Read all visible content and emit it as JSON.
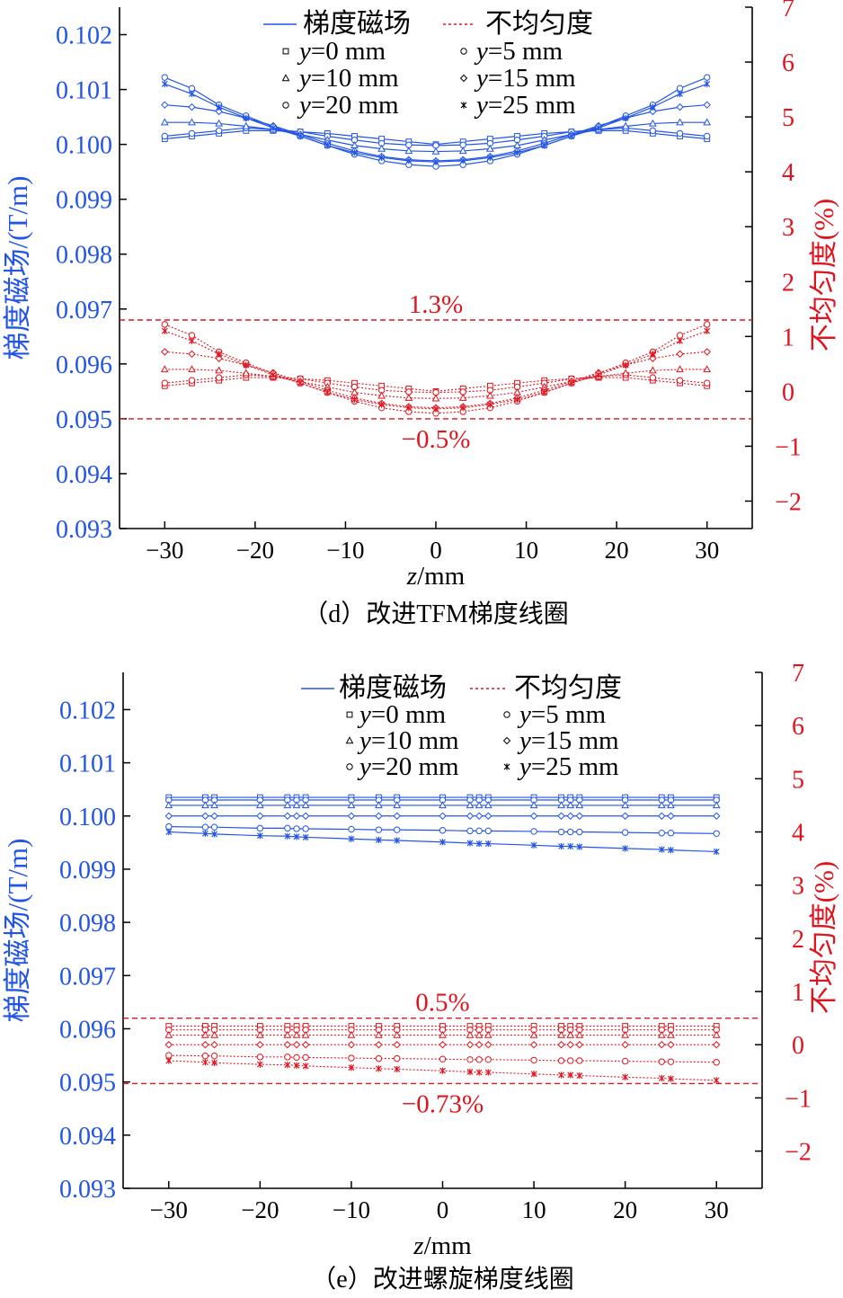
{
  "colors": {
    "blue": "#2255e6",
    "red": "#e0141e",
    "axis": "#000000"
  },
  "chart_data": [
    {
      "type": "line",
      "caption": "（d）改进TFM梯度线圈",
      "xlabel_italic": "z",
      "xlabel_rest": "/mm",
      "ylabel_left": "梯度磁场/(T/m)",
      "ylabel_right": "不均匀度(%)",
      "xlim": [
        -35,
        35
      ],
      "ylim_left": [
        0.093,
        0.1025
      ],
      "ylim_right": [
        -2.5,
        7
      ],
      "xticks": [
        -30,
        -20,
        -10,
        0,
        10,
        20,
        30
      ],
      "xtick_labels": [
        "−30",
        "−20",
        "−10",
        "0",
        "10",
        "20",
        "30"
      ],
      "yticks_left": [
        0.093,
        0.094,
        0.095,
        0.096,
        0.097,
        0.098,
        0.099,
        0.1,
        0.101,
        0.102
      ],
      "ytick_labels_left": [
        "0.093",
        "0.094",
        "0.095",
        "0.096",
        "0.097",
        "0.098",
        "0.099",
        "0.100",
        "0.101",
        "0.102"
      ],
      "yticks_right": [
        -2,
        -1,
        0,
        1,
        2,
        3,
        4,
        5,
        6,
        7
      ],
      "ytick_labels_right": [
        "−2",
        "−1",
        "0",
        "1",
        "2",
        "3",
        "4",
        "5",
        "6",
        "7"
      ],
      "legend": {
        "solid": "梯度磁场",
        "dashed": "不均匀度",
        "y_prefix": "y",
        "placement": "top-center"
      },
      "series_labels": [
        "=0 mm",
        "=5 mm",
        "=10 mm",
        "=15 mm",
        "=20 mm",
        "=25 mm"
      ],
      "x": [
        -30,
        -27,
        -24,
        -21,
        -18,
        -15,
        -12,
        -9,
        -6,
        -3,
        0,
        3,
        6,
        9,
        12,
        15,
        18,
        21,
        24,
        27,
        30
      ],
      "series_field": [
        [
          0.1001,
          0.10015,
          0.1002,
          0.10025,
          0.10025,
          0.10023,
          0.1002,
          0.10015,
          0.1001,
          0.10005,
          0.1,
          0.10005,
          0.1001,
          0.10015,
          0.1002,
          0.10023,
          0.10025,
          0.10025,
          0.1002,
          0.10015,
          0.1001
        ],
        [
          0.10015,
          0.1002,
          0.10025,
          0.1003,
          0.10027,
          0.10023,
          0.10015,
          0.10008,
          0.10002,
          0.09999,
          0.09998,
          0.09999,
          0.10002,
          0.10008,
          0.10015,
          0.10023,
          0.10027,
          0.1003,
          0.10025,
          0.1002,
          0.10015
        ],
        [
          0.1004,
          0.1004,
          0.10038,
          0.10033,
          0.10027,
          0.10018,
          0.10008,
          0.09998,
          0.09992,
          0.09988,
          0.09987,
          0.09988,
          0.09992,
          0.09998,
          0.10008,
          0.10018,
          0.10027,
          0.10033,
          0.10038,
          0.1004,
          0.1004
        ],
        [
          0.10072,
          0.10068,
          0.1006,
          0.10048,
          0.10034,
          0.10018,
          0.10002,
          0.09988,
          0.09978,
          0.09972,
          0.0997,
          0.09972,
          0.09978,
          0.09988,
          0.10002,
          0.10018,
          0.10034,
          0.10048,
          0.1006,
          0.10068,
          0.10072
        ],
        [
          0.10122,
          0.10102,
          0.10072,
          0.10052,
          0.10032,
          0.10015,
          0.09998,
          0.09982,
          0.0997,
          0.09963,
          0.0996,
          0.09963,
          0.0997,
          0.09982,
          0.09998,
          0.10015,
          0.10032,
          0.10052,
          0.10072,
          0.10102,
          0.10122
        ],
        [
          0.1011,
          0.10092,
          0.10068,
          0.10048,
          0.1003,
          0.10015,
          0.09998,
          0.09985,
          0.09976,
          0.0997,
          0.09968,
          0.0997,
          0.09976,
          0.09985,
          0.09998,
          0.10015,
          0.1003,
          0.10048,
          0.10068,
          0.10092,
          0.1011
        ]
      ],
      "series_nonuniformity": [
        [
          0.1,
          0.15,
          0.2,
          0.25,
          0.25,
          0.23,
          0.2,
          0.15,
          0.1,
          0.05,
          0.0,
          0.05,
          0.1,
          0.15,
          0.2,
          0.23,
          0.25,
          0.25,
          0.2,
          0.15,
          0.1
        ],
        [
          0.15,
          0.2,
          0.25,
          0.3,
          0.27,
          0.23,
          0.15,
          0.08,
          0.02,
          -0.01,
          -0.02,
          -0.01,
          0.02,
          0.08,
          0.15,
          0.23,
          0.27,
          0.3,
          0.25,
          0.2,
          0.15
        ],
        [
          0.4,
          0.4,
          0.38,
          0.33,
          0.27,
          0.18,
          0.08,
          -0.02,
          -0.08,
          -0.12,
          -0.13,
          -0.12,
          -0.08,
          -0.02,
          0.08,
          0.18,
          0.27,
          0.33,
          0.38,
          0.4,
          0.4
        ],
        [
          0.72,
          0.68,
          0.6,
          0.48,
          0.34,
          0.18,
          0.02,
          -0.12,
          -0.22,
          -0.28,
          -0.3,
          -0.28,
          -0.22,
          -0.12,
          0.02,
          0.18,
          0.34,
          0.48,
          0.6,
          0.68,
          0.72
        ],
        [
          1.22,
          1.02,
          0.72,
          0.52,
          0.32,
          0.15,
          -0.02,
          -0.18,
          -0.3,
          -0.37,
          -0.4,
          -0.37,
          -0.3,
          -0.18,
          -0.02,
          0.15,
          0.32,
          0.52,
          0.72,
          1.02,
          1.22
        ],
        [
          1.1,
          0.92,
          0.68,
          0.48,
          0.3,
          0.15,
          -0.02,
          -0.15,
          -0.24,
          -0.3,
          -0.32,
          -0.3,
          -0.24,
          -0.15,
          -0.02,
          0.15,
          0.3,
          0.48,
          0.68,
          0.92,
          1.1
        ]
      ],
      "reference_lines": [
        {
          "value": 1.3,
          "label": "1.3%",
          "label_position": "above"
        },
        {
          "value": -0.5,
          "label": "−0.5%",
          "label_position": "below"
        }
      ]
    },
    {
      "type": "line",
      "caption": "（e）改进螺旋梯度线圈",
      "xlabel_italic": "z",
      "xlabel_rest": "/mm",
      "ylabel_left": "梯度磁场/(T/m)",
      "ylabel_right": "不均匀度(%)",
      "xlim": [
        -35,
        35
      ],
      "ylim_left": [
        0.093,
        0.1027
      ],
      "ylim_right": [
        -2.7,
        7
      ],
      "xticks": [
        -30,
        -20,
        -10,
        0,
        10,
        20,
        30
      ],
      "xtick_labels": [
        "−30",
        "−20",
        "−10",
        "0",
        "10",
        "20",
        "30"
      ],
      "yticks_left": [
        0.093,
        0.094,
        0.095,
        0.096,
        0.097,
        0.098,
        0.099,
        0.1,
        0.101,
        0.102
      ],
      "ytick_labels_left": [
        "0.093",
        "0.094",
        "0.095",
        "0.096",
        "0.097",
        "0.098",
        "0.099",
        "0.100",
        "0.101",
        "0.102"
      ],
      "yticks_right": [
        -2,
        -1,
        0,
        1,
        2,
        3,
        4,
        5,
        6,
        7
      ],
      "ytick_labels_right": [
        "−2",
        "−1",
        "0",
        "1",
        "2",
        "3",
        "4",
        "5",
        "6",
        "7"
      ],
      "legend": {
        "solid": "梯度磁场",
        "dashed": "不均匀度",
        "y_prefix": "y",
        "placement": "top-center"
      },
      "series_labels": [
        "=0 mm",
        "=5 mm",
        "=10 mm",
        "=15 mm",
        "=20 mm",
        "=25 mm"
      ],
      "x": [
        -30,
        -26,
        -25,
        -20,
        -17,
        -16,
        -15,
        -10,
        -7,
        -5,
        0,
        3,
        4,
        5,
        10,
        13,
        14,
        15,
        20,
        24,
        25,
        30
      ],
      "series_field": [
        [
          0.10035,
          0.10035,
          0.10035,
          0.10035,
          0.10035,
          0.10035,
          0.10035,
          0.10035,
          0.10035,
          0.10035,
          0.10035,
          0.10035,
          0.10035,
          0.10035,
          0.10035,
          0.10035,
          0.10035,
          0.10035,
          0.10035,
          0.10035,
          0.10035,
          0.10035
        ],
        [
          0.1003,
          0.1003,
          0.1003,
          0.1003,
          0.1003,
          0.1003,
          0.1003,
          0.1003,
          0.1003,
          0.1003,
          0.1003,
          0.1003,
          0.1003,
          0.1003,
          0.1003,
          0.1003,
          0.1003,
          0.1003,
          0.1003,
          0.1003,
          0.1003,
          0.1003
        ],
        [
          0.1002,
          0.1002,
          0.1002,
          0.1002,
          0.1002,
          0.1002,
          0.1002,
          0.1002,
          0.1002,
          0.1002,
          0.1002,
          0.1002,
          0.1002,
          0.1002,
          0.1002,
          0.1002,
          0.1002,
          0.1002,
          0.1002,
          0.1002,
          0.1002,
          0.1002
        ],
        [
          0.1,
          0.1,
          0.1,
          0.1,
          0.1,
          0.1,
          0.1,
          0.1,
          0.1,
          0.1,
          0.1,
          0.1,
          0.1,
          0.1,
          0.1,
          0.1,
          0.1,
          0.1,
          0.1,
          0.1,
          0.1,
          0.1
        ],
        [
          0.0998,
          0.09979,
          0.09979,
          0.09977,
          0.09977,
          0.09976,
          0.09976,
          0.09975,
          0.09974,
          0.09974,
          0.09973,
          0.09972,
          0.09972,
          0.09972,
          0.09971,
          0.0997,
          0.0997,
          0.0997,
          0.09969,
          0.09968,
          0.09968,
          0.09967
        ],
        [
          0.0997,
          0.09967,
          0.09966,
          0.09963,
          0.09962,
          0.09961,
          0.0996,
          0.09957,
          0.09955,
          0.09954,
          0.09951,
          0.09949,
          0.09948,
          0.09948,
          0.09945,
          0.09943,
          0.09943,
          0.09942,
          0.09939,
          0.09937,
          0.09936,
          0.09933
        ]
      ],
      "series_nonuniformity": [
        [
          0.35,
          0.35,
          0.35,
          0.35,
          0.35,
          0.35,
          0.35,
          0.35,
          0.35,
          0.35,
          0.35,
          0.35,
          0.35,
          0.35,
          0.35,
          0.35,
          0.35,
          0.35,
          0.35,
          0.35,
          0.35,
          0.35
        ],
        [
          0.28,
          0.28,
          0.28,
          0.28,
          0.28,
          0.28,
          0.28,
          0.28,
          0.28,
          0.28,
          0.28,
          0.28,
          0.28,
          0.28,
          0.28,
          0.28,
          0.28,
          0.28,
          0.28,
          0.28,
          0.28,
          0.28
        ],
        [
          0.18,
          0.18,
          0.18,
          0.18,
          0.18,
          0.18,
          0.18,
          0.18,
          0.18,
          0.18,
          0.18,
          0.18,
          0.18,
          0.18,
          0.18,
          0.18,
          0.18,
          0.18,
          0.18,
          0.18,
          0.18,
          0.18
        ],
        [
          0.0,
          0.0,
          0.0,
          0.0,
          0.0,
          0.0,
          0.0,
          0.0,
          0.0,
          0.0,
          0.0,
          0.0,
          0.0,
          0.0,
          0.0,
          0.0,
          0.0,
          0.0,
          0.0,
          0.0,
          0.0,
          0.0
        ],
        [
          -0.2,
          -0.21,
          -0.21,
          -0.23,
          -0.23,
          -0.24,
          -0.24,
          -0.25,
          -0.26,
          -0.26,
          -0.27,
          -0.28,
          -0.28,
          -0.28,
          -0.29,
          -0.3,
          -0.3,
          -0.3,
          -0.31,
          -0.32,
          -0.32,
          -0.33
        ],
        [
          -0.3,
          -0.33,
          -0.34,
          -0.37,
          -0.38,
          -0.39,
          -0.4,
          -0.43,
          -0.45,
          -0.46,
          -0.49,
          -0.51,
          -0.52,
          -0.52,
          -0.55,
          -0.57,
          -0.57,
          -0.58,
          -0.61,
          -0.63,
          -0.64,
          -0.67
        ]
      ],
      "reference_lines": [
        {
          "value": 0.5,
          "label": "0.5%",
          "label_position": "above"
        },
        {
          "value": -0.73,
          "label": "−0.73%",
          "label_position": "below"
        }
      ]
    }
  ]
}
